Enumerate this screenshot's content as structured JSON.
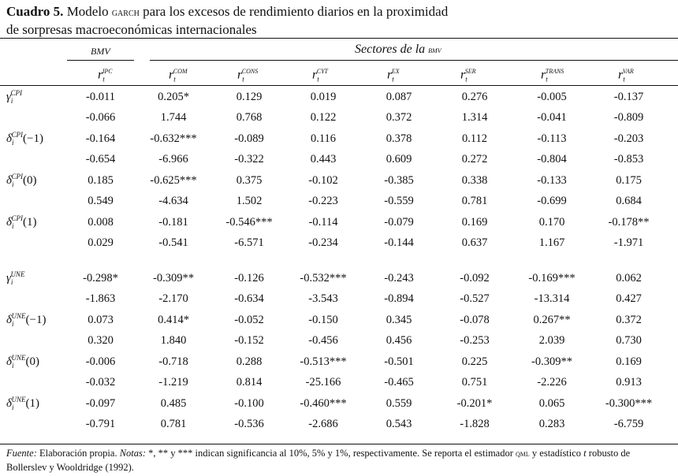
{
  "title": {
    "label": "Cuadro 5.",
    "text_before": " Modelo ",
    "garch": "garch",
    "text_after": " para los excesos de rendimiento diarios en la proximidad",
    "line2": "de sorpresas macroeconómicas internacionales"
  },
  "header": {
    "bmv": "BMV",
    "sectores": "Sectores de la ",
    "sectores_sc": "bmv",
    "columns": [
      {
        "base": "r",
        "sub": "t",
        "sup": "IPC"
      },
      {
        "base": "r",
        "sub": "t",
        "sup": "COM"
      },
      {
        "base": "r",
        "sub": "t",
        "sup": "CONS"
      },
      {
        "base": "r",
        "sub": "t",
        "sup": "CYT"
      },
      {
        "base": "r",
        "sub": "t",
        "sup": "EX"
      },
      {
        "base": "r",
        "sub": "t",
        "sup": "SER"
      },
      {
        "base": "r",
        "sub": "t",
        "sup": "TRANS"
      },
      {
        "base": "r",
        "sub": "t",
        "sup": "VAR"
      }
    ]
  },
  "rows": [
    {
      "sym": "γ",
      "sub": "i",
      "sup": "CPI",
      "arg": "",
      "values": [
        "-0.011",
        "0.205*",
        "0.129",
        "0.019",
        "0.087",
        "0.276",
        "-0.005",
        "-0.137"
      ]
    },
    {
      "sym": "",
      "sub": "",
      "sup": "",
      "arg": "",
      "values": [
        "-0.066",
        "1.744",
        "0.768",
        "0.122",
        "0.372",
        "1.314",
        "-0.041",
        "-0.809"
      ]
    },
    {
      "sym": "δ",
      "sub": "i",
      "sup": "CPI",
      "arg": "(−1)",
      "values": [
        "-0.164",
        "-0.632***",
        "-0.089",
        "0.116",
        "0.378",
        "0.112",
        "-0.113",
        "-0.203"
      ]
    },
    {
      "sym": "",
      "sub": "",
      "sup": "",
      "arg": "",
      "values": [
        "-0.654",
        "-6.966",
        "-0.322",
        "0.443",
        "0.609",
        "0.272",
        "-0.804",
        "-0.853"
      ]
    },
    {
      "sym": "δ",
      "sub": "i",
      "sup": "CPI",
      "arg": "(0)",
      "values": [
        "0.185",
        "-0.625***",
        "0.375",
        "-0.102",
        "-0.385",
        "0.338",
        "-0.133",
        "0.175"
      ]
    },
    {
      "sym": "",
      "sub": "",
      "sup": "",
      "arg": "",
      "values": [
        "0.549",
        "-4.634",
        "1.502",
        "-0.223",
        "-0.559",
        "0.781",
        "-0.699",
        "0.684"
      ]
    },
    {
      "sym": "δ",
      "sub": "i",
      "sup": "CPI",
      "arg": "(1)",
      "values": [
        "0.008",
        "-0.181",
        "-0.546***",
        "-0.114",
        "-0.079",
        "0.169",
        "0.170",
        "-0.178**"
      ]
    },
    {
      "sym": "",
      "sub": "",
      "sup": "",
      "arg": "",
      "values": [
        "0.029",
        "-0.541",
        "-6.571",
        "-0.234",
        "-0.144",
        "0.637",
        "1.167",
        "-1.971"
      ]
    },
    {
      "gap": true
    },
    {
      "sym": "γ",
      "sub": "i",
      "sup": "UNE",
      "arg": "",
      "values": [
        "-0.298*",
        "-0.309**",
        "-0.126",
        "-0.532***",
        "-0.243",
        "-0.092",
        "-0.169***",
        "0.062"
      ]
    },
    {
      "sym": "",
      "sub": "",
      "sup": "",
      "arg": "",
      "values": [
        "-1.863",
        "-2.170",
        "-0.634",
        "-3.543",
        "-0.894",
        "-0.527",
        "-13.314",
        "0.427"
      ]
    },
    {
      "sym": "δ",
      "sub": "i",
      "sup": "UNE",
      "arg": "(−1)",
      "values": [
        "0.073",
        "0.414*",
        "-0.052",
        "-0.150",
        "0.345",
        "-0.078",
        "0.267**",
        "0.372"
      ]
    },
    {
      "sym": "",
      "sub": "",
      "sup": "",
      "arg": "",
      "values": [
        "0.320",
        "1.840",
        "-0.152",
        "-0.456",
        "0.456",
        "-0.253",
        "2.039",
        "0.730"
      ]
    },
    {
      "sym": "δ",
      "sub": "i",
      "sup": "UNE",
      "arg": "(0)",
      "values": [
        "-0.006",
        "-0.718",
        "0.288",
        "-0.513***",
        "-0.501",
        "0.225",
        "-0.309**",
        "0.169"
      ]
    },
    {
      "sym": "",
      "sub": "",
      "sup": "",
      "arg": "",
      "values": [
        "-0.032",
        "-1.219",
        "0.814",
        "-25.166",
        "-0.465",
        "0.751",
        "-2.226",
        "0.913"
      ]
    },
    {
      "sym": "δ",
      "sub": "i",
      "sup": "UNE",
      "arg": "(1)",
      "values": [
        "-0.097",
        "0.485",
        "-0.100",
        "-0.460***",
        "0.559",
        "-0.201*",
        "0.065",
        "-0.300***"
      ]
    },
    {
      "sym": "",
      "sub": "",
      "sup": "",
      "arg": "",
      "values": [
        "-0.791",
        "0.781",
        "-0.536",
        "-2.686",
        "0.543",
        "-1.828",
        "0.283",
        "-6.759"
      ]
    }
  ],
  "footnote": {
    "fuente_label": "Fuente:",
    "fuente_text": " Elaboración propia. ",
    "notas_label": "Notas:",
    "notas_text": " *, ** y *** indican significancia al 10%, 5% y 1%, respectivamente. Se reporta el estimador ",
    "qml": "qml",
    "text2": " y estadístico ",
    "t": "t",
    "text3": " robusto de Bollerslev y Wooldridge (1992)."
  }
}
